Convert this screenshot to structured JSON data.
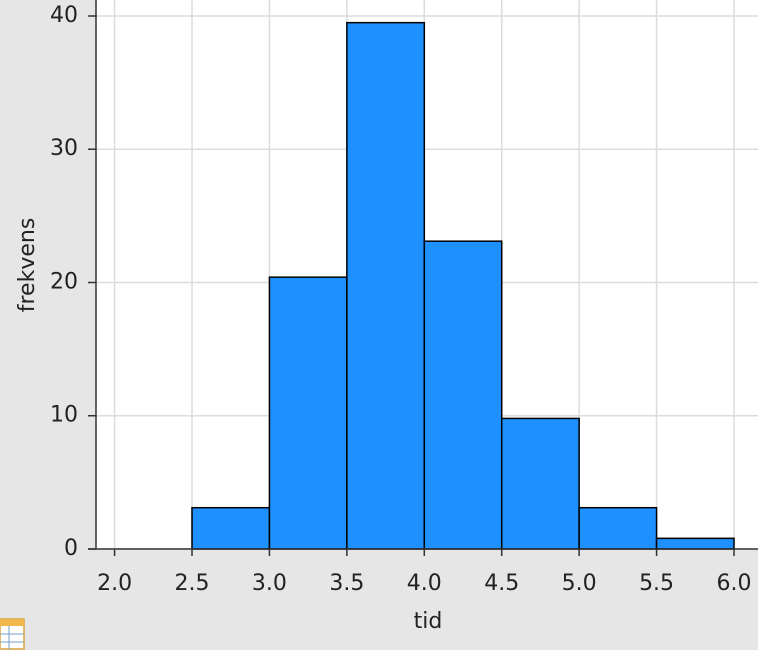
{
  "chart_data": {
    "type": "histogram",
    "x_label": "tid",
    "y_label": "frekvens",
    "bins": [
      2.0,
      2.5,
      3.0,
      3.5,
      4.0,
      4.5,
      5.0,
      5.5,
      6.0
    ],
    "values": [
      0,
      3.1,
      20.4,
      39.5,
      23.1,
      9.8,
      3.1,
      0.8
    ],
    "color": "#1e90ff",
    "xlim": [
      1.88,
      6.155
    ],
    "xticks": [
      {
        "value": 2.0,
        "label": "2.0"
      },
      {
        "value": 2.5,
        "label": "2.5"
      },
      {
        "value": 3.0,
        "label": "3.0"
      },
      {
        "value": 3.5,
        "label": "3.5"
      },
      {
        "value": 4.0,
        "label": "4.0"
      },
      {
        "value": 4.5,
        "label": "4.5"
      },
      {
        "value": 5.0,
        "label": "5.0"
      },
      {
        "value": 5.5,
        "label": "5.5"
      },
      {
        "value": 6.0,
        "label": "6.0"
      }
    ],
    "ylim": [
      0,
      41.2
    ],
    "yticks": [
      0,
      10,
      20,
      30,
      40
    ],
    "grid": true
  }
}
